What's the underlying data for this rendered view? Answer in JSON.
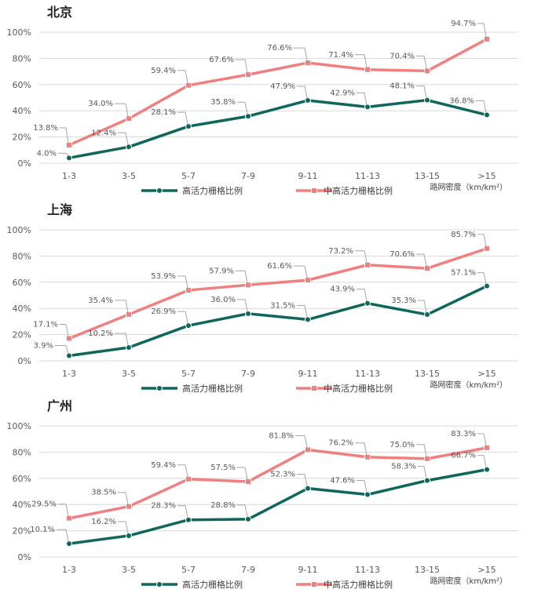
{
  "chart_data": [
    {
      "type": "line",
      "title": "北京",
      "categories": [
        "1-3",
        "3-5",
        "5-7",
        "7-9",
        "9-11",
        "11-13",
        "13-15",
        ">15"
      ],
      "xlabel": "路网密度（km/km²）",
      "ylabel": "",
      "ylim": [
        0,
        100
      ],
      "yticks": [
        "0%",
        "20%",
        "40%",
        "60%",
        "80%",
        "100%"
      ],
      "grid": true,
      "legend": "bottom",
      "series": [
        {
          "name": "高活力栅格比例",
          "color": "#0f665c",
          "marker": "circle",
          "values": [
            4.0,
            12.4,
            28.1,
            35.8,
            47.9,
            42.9,
            48.1,
            36.8
          ],
          "labels": [
            "4.0%",
            "12.4%",
            "28.1%",
            "35.8%",
            "47.9%",
            "42.9%",
            "48.1%",
            "36.8%"
          ]
        },
        {
          "name": "中高活力栅格比例",
          "color": "#f08080",
          "marker": "square",
          "values": [
            13.8,
            34.0,
            59.4,
            67.6,
            76.6,
            71.4,
            70.4,
            94.7
          ],
          "labels": [
            "13.8%",
            "34.0%",
            "59.4%",
            "67.6%",
            "76.6%",
            "71.4%",
            "70.4%",
            "94.7%"
          ]
        }
      ]
    },
    {
      "type": "line",
      "title": "上海",
      "categories": [
        "1-3",
        "3-5",
        "5-7",
        "7-9",
        "9-11",
        "11-13",
        "13-15",
        ">15"
      ],
      "xlabel": "路网密度（km/km²）",
      "ylabel": "",
      "ylim": [
        0,
        100
      ],
      "yticks": [
        "0%",
        "20%",
        "40%",
        "60%",
        "80%",
        "100%"
      ],
      "grid": true,
      "legend": "bottom",
      "series": [
        {
          "name": "高活力栅格比例",
          "color": "#0f665c",
          "marker": "circle",
          "values": [
            3.9,
            10.2,
            26.9,
            36.0,
            31.5,
            43.9,
            35.3,
            57.1
          ],
          "labels": [
            "3.9%",
            "10.2%",
            "26.9%",
            "36.0%",
            "31.5%",
            "43.9%",
            "35.3%",
            "57.1%"
          ]
        },
        {
          "name": "中高活力栅格比例",
          "color": "#f08080",
          "marker": "square",
          "values": [
            17.1,
            35.4,
            53.9,
            57.9,
            61.6,
            73.2,
            70.6,
            85.7
          ],
          "labels": [
            "17.1%",
            "35.4%",
            "53.9%",
            "57.9%",
            "61.6%",
            "73.2%",
            "70.6%",
            "85.7%"
          ]
        }
      ]
    },
    {
      "type": "line",
      "title": "广州",
      "categories": [
        "1-3",
        "3-5",
        "5-7",
        "7-9",
        "9-11",
        "11-13",
        "13-15",
        ">15"
      ],
      "xlabel": "路网密度（km/km²）",
      "ylabel": "",
      "ylim": [
        0,
        100
      ],
      "yticks": [
        "0%",
        "20%",
        "40%",
        "60%",
        "80%",
        "100%"
      ],
      "grid": true,
      "legend": "bottom",
      "series": [
        {
          "name": "高活力栅格比例",
          "color": "#0f665c",
          "marker": "circle",
          "values": [
            10.1,
            16.2,
            28.3,
            28.8,
            52.3,
            47.6,
            58.3,
            66.7
          ],
          "labels": [
            "10.1%",
            "16.2%",
            "28.3%",
            "28.8%",
            "52.3%",
            "47.6%",
            "58.3%",
            "66.7%"
          ]
        },
        {
          "name": "中高活力栅格比例",
          "color": "#f08080",
          "marker": "square",
          "values": [
            29.5,
            38.5,
            59.4,
            57.5,
            81.8,
            76.2,
            75.0,
            83.3
          ],
          "labels": [
            "29.5%",
            "38.5%",
            "59.4%",
            "57.5%",
            "81.8%",
            "76.2%",
            "75.0%",
            "83.3%"
          ]
        }
      ]
    }
  ]
}
